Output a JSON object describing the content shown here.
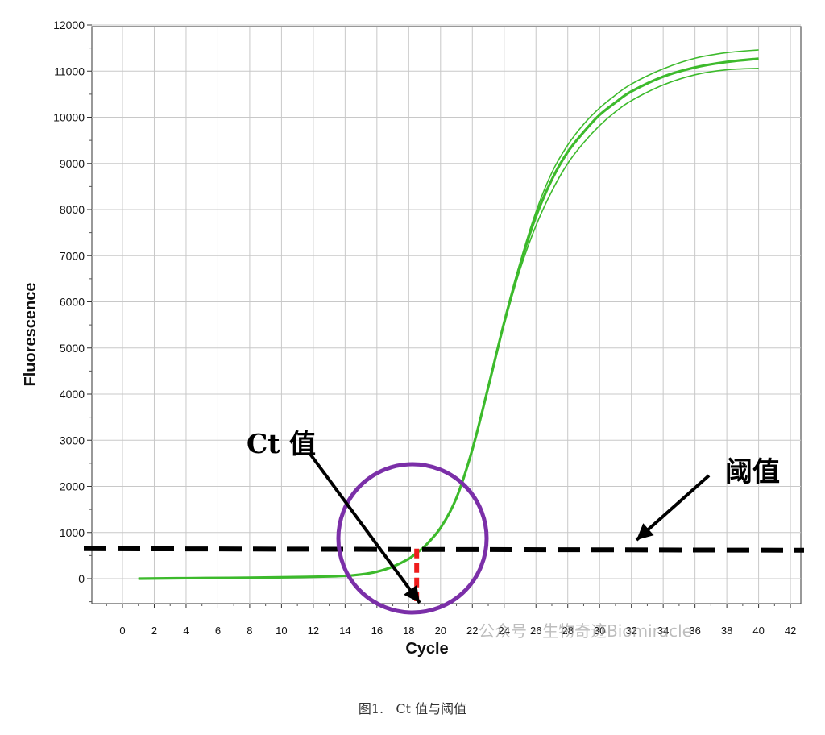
{
  "chart_data": {
    "type": "line",
    "xlabel": "Cycle",
    "ylabel": "Fluorescence",
    "x_ticks": [
      "0",
      "2",
      "4",
      "6",
      "8",
      "10",
      "12",
      "14",
      "16",
      "18",
      "20",
      "22",
      "24",
      "26",
      "28",
      "30",
      "32",
      "34",
      "36",
      "38",
      "40",
      "42"
    ],
    "y_ticks": [
      "0",
      "1000",
      "2000",
      "3000",
      "4000",
      "5000",
      "6000",
      "7000",
      "8000",
      "9000",
      "10000",
      "11000",
      "12000"
    ],
    "xlim": [
      -2,
      43
    ],
    "ylim": [
      -500,
      12000
    ],
    "grid": true,
    "threshold": 650,
    "ct": 18.5,
    "series": [
      {
        "color": "#3dba2c",
        "x": [
          1,
          4,
          8,
          12,
          14,
          15,
          16,
          17,
          18,
          18.5,
          19,
          20,
          21,
          22,
          23,
          24,
          25,
          26,
          27,
          28,
          29,
          30,
          31,
          32,
          34,
          36,
          38,
          40
        ],
        "y": [
          0,
          10,
          20,
          40,
          60,
          90,
          150,
          260,
          430,
          560,
          700,
          1100,
          1750,
          2800,
          4150,
          5550,
          6800,
          7850,
          8650,
          9250,
          9680,
          10050,
          10320,
          10560,
          10880,
          11080,
          11200,
          11270
        ]
      },
      {
        "color": "#3dba2c",
        "x": [
          1,
          4,
          8,
          12,
          14,
          15,
          16,
          17,
          18,
          18.5,
          19,
          20,
          21,
          22,
          23,
          24,
          25,
          26,
          27,
          28,
          29,
          30,
          31,
          32,
          34,
          36,
          38,
          40
        ],
        "y": [
          0,
          10,
          20,
          40,
          60,
          90,
          150,
          260,
          430,
          560,
          700,
          1100,
          1750,
          2800,
          4150,
          5550,
          6850,
          7950,
          8800,
          9400,
          9850,
          10200,
          10480,
          10720,
          11050,
          11280,
          11400,
          11460
        ]
      },
      {
        "color": "#3dba2c",
        "x": [
          1,
          4,
          8,
          12,
          14,
          15,
          16,
          17,
          18,
          18.5,
          19,
          20,
          21,
          22,
          23,
          24,
          25,
          26,
          27,
          28,
          29,
          30,
          31,
          32,
          34,
          36,
          38,
          40
        ],
        "y": [
          0,
          10,
          20,
          40,
          60,
          90,
          150,
          260,
          430,
          560,
          700,
          1100,
          1750,
          2800,
          4150,
          5500,
          6700,
          7650,
          8400,
          9000,
          9450,
          9820,
          10120,
          10360,
          10700,
          10920,
          11030,
          11060
        ]
      }
    ],
    "annotations": {
      "ct_label": "Ct 值",
      "threshold_label": "阈值"
    },
    "colors": {
      "curve": "#3dba2c",
      "threshold_line": "#000000",
      "ct_marker": "#ee1c1c",
      "circle": "#7b2fa8",
      "arrow": "#000000"
    }
  },
  "watermark": "公众号 · 生物奇迹Biomiracle",
  "caption": "图1.   Ct 值与阈值"
}
